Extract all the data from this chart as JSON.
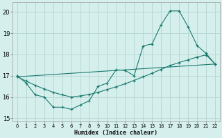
{
  "bg_color": "#d5efed",
  "grid_color": "#b8d8d5",
  "line_color": "#1a7a6e",
  "xlabel": "Humidex (Indice chaleur)",
  "xlim": [
    -0.5,
    22.5
  ],
  "ylim": [
    14.85,
    20.45
  ],
  "xticks": [
    0,
    1,
    2,
    3,
    4,
    5,
    6,
    7,
    8,
    9,
    10,
    11,
    12,
    13,
    14,
    15,
    16,
    17,
    18,
    19,
    20,
    21,
    22
  ],
  "yticks": [
    15,
    16,
    17,
    18,
    19,
    20
  ],
  "line1_x": [
    0,
    22
  ],
  "line1_y": [
    16.95,
    17.55
  ],
  "line2_x": [
    0,
    1,
    2,
    3,
    4,
    5,
    6,
    7,
    8,
    9,
    10,
    11,
    12,
    13,
    14,
    15,
    16,
    17,
    18,
    19,
    20,
    21,
    22
  ],
  "line2_y": [
    17.0,
    16.65,
    16.1,
    16.0,
    15.52,
    15.52,
    15.42,
    15.62,
    15.82,
    16.5,
    16.65,
    17.28,
    17.25,
    17.0,
    18.4,
    18.5,
    19.4,
    20.05,
    20.05,
    19.3,
    18.42,
    18.05,
    17.55
  ],
  "line3_x": [
    0,
    1,
    2,
    3,
    4,
    5,
    6,
    7,
    8,
    9,
    10,
    11,
    12,
    13,
    14,
    15,
    16,
    17,
    18,
    19,
    20,
    21,
    22
  ],
  "line3_y": [
    16.95,
    16.75,
    16.55,
    16.38,
    16.22,
    16.1,
    16.0,
    16.05,
    16.12,
    16.22,
    16.35,
    16.48,
    16.62,
    16.78,
    16.95,
    17.12,
    17.3,
    17.48,
    17.62,
    17.75,
    17.88,
    17.98,
    17.55
  ]
}
